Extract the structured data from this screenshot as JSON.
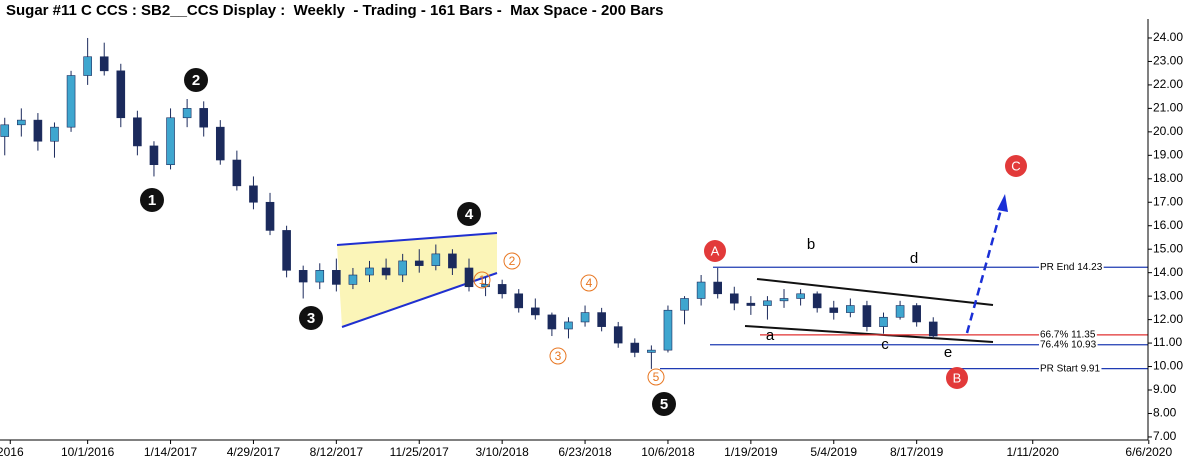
{
  "chart_data": {
    "type": "candlestick",
    "title": "Sugar #11 C CCS : SB2__CCS Display :  Weekly  - Trading - 161 Bars -  Max Space - 200 Bars",
    "x": [
      "2016-06-18",
      "2016-07-09",
      "2016-07-30",
      "2016-08-20",
      "2016-09-10",
      "2016-10-01",
      "2016-10-22",
      "2016-11-12",
      "2016-12-03",
      "2016-12-24",
      "2017-01-14",
      "2017-02-04",
      "2017-02-25",
      "2017-03-18",
      "2017-04-08",
      "2017-04-29",
      "2017-05-20",
      "2017-06-10",
      "2017-07-01",
      "2017-07-22",
      "2017-08-12",
      "2017-09-02",
      "2017-09-23",
      "2017-10-14",
      "2017-11-04",
      "2017-11-25",
      "2017-12-16",
      "2018-01-06",
      "2018-01-27",
      "2018-02-17",
      "2018-03-10",
      "2018-03-31",
      "2018-04-21",
      "2018-05-12",
      "2018-06-02",
      "2018-06-23",
      "2018-07-14",
      "2018-08-04",
      "2018-08-25",
      "2018-09-15",
      "2018-10-06",
      "2018-10-27",
      "2018-11-17",
      "2018-12-08",
      "2018-12-29",
      "2019-01-19",
      "2019-02-09",
      "2019-03-02",
      "2019-03-23",
      "2019-04-13",
      "2019-05-04",
      "2019-05-25",
      "2019-06-15",
      "2019-07-06",
      "2019-07-27",
      "2019-08-17",
      "2019-09-07"
    ],
    "open": [
      19.8,
      20.3,
      20.5,
      19.6,
      20.2,
      22.4,
      23.2,
      22.6,
      20.6,
      19.4,
      18.6,
      20.6,
      21.0,
      20.2,
      18.8,
      17.7,
      17.0,
      15.8,
      14.1,
      13.6,
      14.1,
      13.5,
      13.9,
      14.2,
      13.9,
      14.5,
      14.3,
      14.8,
      14.2,
      13.4,
      13.5,
      13.1,
      12.5,
      12.2,
      11.6,
      11.9,
      12.3,
      11.7,
      11.0,
      10.6,
      10.7,
      12.4,
      12.9,
      13.6,
      13.1,
      12.7,
      12.6,
      12.8,
      12.9,
      13.1,
      12.5,
      12.3,
      12.6,
      11.7,
      12.1,
      12.6,
      11.9
    ],
    "high": [
      20.6,
      21.0,
      20.8,
      20.4,
      22.6,
      24.0,
      23.8,
      22.9,
      20.9,
      19.6,
      21.0,
      21.4,
      21.3,
      20.5,
      19.2,
      18.1,
      17.4,
      16.0,
      14.3,
      14.4,
      14.6,
      14.2,
      14.5,
      14.6,
      14.8,
      15.0,
      15.2,
      15.0,
      14.6,
      13.8,
      13.7,
      13.3,
      12.9,
      12.3,
      12.1,
      12.6,
      12.5,
      11.9,
      11.2,
      10.9,
      12.6,
      13.0,
      13.9,
      14.2,
      13.4,
      13.0,
      13.0,
      13.3,
      13.3,
      13.2,
      12.8,
      12.9,
      12.8,
      12.3,
      12.8,
      12.7,
      12.1
    ],
    "low": [
      19.0,
      19.8,
      19.2,
      18.9,
      20.0,
      22.0,
      22.4,
      20.2,
      19.0,
      18.1,
      18.4,
      20.2,
      19.8,
      18.6,
      17.5,
      16.7,
      15.6,
      13.8,
      12.9,
      13.3,
      13.2,
      13.3,
      13.6,
      13.7,
      13.6,
      14.0,
      14.1,
      13.9,
      13.2,
      13.0,
      12.9,
      12.3,
      12.0,
      11.3,
      11.2,
      11.7,
      11.5,
      10.8,
      10.4,
      9.9,
      10.6,
      11.8,
      12.6,
      12.9,
      12.4,
      12.2,
      12.0,
      12.5,
      12.6,
      12.3,
      12.0,
      12.1,
      11.5,
      11.4,
      12.0,
      11.7,
      11.2
    ],
    "close": [
      20.3,
      20.5,
      19.6,
      20.2,
      22.4,
      23.2,
      22.6,
      20.6,
      19.4,
      18.6,
      20.6,
      21.0,
      20.2,
      18.8,
      17.7,
      17.0,
      15.8,
      14.1,
      13.6,
      14.1,
      13.5,
      13.9,
      14.2,
      13.9,
      14.5,
      14.3,
      14.8,
      14.2,
      13.4,
      13.5,
      13.1,
      12.5,
      12.2,
      11.6,
      11.9,
      12.3,
      11.7,
      11.0,
      10.6,
      10.7,
      12.4,
      12.9,
      13.6,
      13.1,
      12.7,
      12.6,
      12.8,
      12.9,
      13.1,
      12.5,
      12.3,
      12.6,
      11.7,
      12.1,
      12.6,
      11.9,
      11.3
    ],
    "up_color": "#3fa6cf",
    "down_color": "#1b2a5c",
    "xlim": [
      "2016-06-12",
      "2020-06-05"
    ],
    "xticks": [
      {
        "value": "2016-06-25",
        "label": "2016"
      },
      {
        "value": "2016-10-01",
        "label": "10/1/2016"
      },
      {
        "value": "2017-01-14",
        "label": "1/14/2017"
      },
      {
        "value": "2017-04-29",
        "label": "4/29/2017"
      },
      {
        "value": "2017-08-12",
        "label": "8/12/2017"
      },
      {
        "value": "2017-11-25",
        "label": "11/25/2017"
      },
      {
        "value": "2018-03-10",
        "label": "3/10/2018"
      },
      {
        "value": "2018-06-23",
        "label": "6/23/2018"
      },
      {
        "value": "2018-10-06",
        "label": "10/6/2018"
      },
      {
        "value": "2019-01-19",
        "label": "1/19/2019"
      },
      {
        "value": "2019-05-04",
        "label": "5/4/2019"
      },
      {
        "value": "2019-08-17",
        "label": "8/17/2019"
      },
      {
        "value": "2020-01-11",
        "label": "1/11/2020"
      },
      {
        "value": "2020-06-06",
        "label": "6/6/2020"
      }
    ],
    "ylim": [
      6.87,
      24.8
    ],
    "yticks": [
      {
        "value": 7,
        "label": "7.00"
      },
      {
        "value": 8,
        "label": "8.00"
      },
      {
        "value": 9,
        "label": "9.00"
      },
      {
        "value": 10,
        "label": "10.00"
      },
      {
        "value": 11,
        "label": "11.00"
      },
      {
        "value": 12,
        "label": "12.00"
      },
      {
        "value": 13,
        "label": "13.00"
      },
      {
        "value": 14,
        "label": "14.00"
      },
      {
        "value": 15,
        "label": "15.00"
      },
      {
        "value": 16,
        "label": "16.00"
      },
      {
        "value": 17,
        "label": "17.00"
      },
      {
        "value": 18,
        "label": "18.00"
      },
      {
        "value": 19,
        "label": "19.00"
      },
      {
        "value": 20,
        "label": "20.00"
      },
      {
        "value": 21,
        "label": "21.00"
      },
      {
        "value": 22,
        "label": "22.00"
      },
      {
        "value": 23,
        "label": "23.00"
      },
      {
        "value": 24,
        "label": "24.00"
      }
    ],
    "levels": [
      {
        "label": "PR End 14.23",
        "value": 14.23,
        "color": "#1f3bb3"
      },
      {
        "label": "66.7% 11.35",
        "value": 11.35,
        "color": "#e03030"
      },
      {
        "label": "76.4% 10.93",
        "value": 10.93,
        "color": "#1f3bb3"
      },
      {
        "label": "PR Start 9.91",
        "value": 9.91,
        "color": "#1f3bb3"
      }
    ],
    "wave_labels": [
      "1",
      "2",
      "3",
      "4",
      "5"
    ],
    "subwave_labels": [
      "1",
      "2",
      "3",
      "4",
      "5"
    ],
    "abc_labels": [
      "A",
      "B",
      "C"
    ],
    "triangle_labels": [
      "a",
      "b",
      "c",
      "d",
      "e"
    ]
  }
}
